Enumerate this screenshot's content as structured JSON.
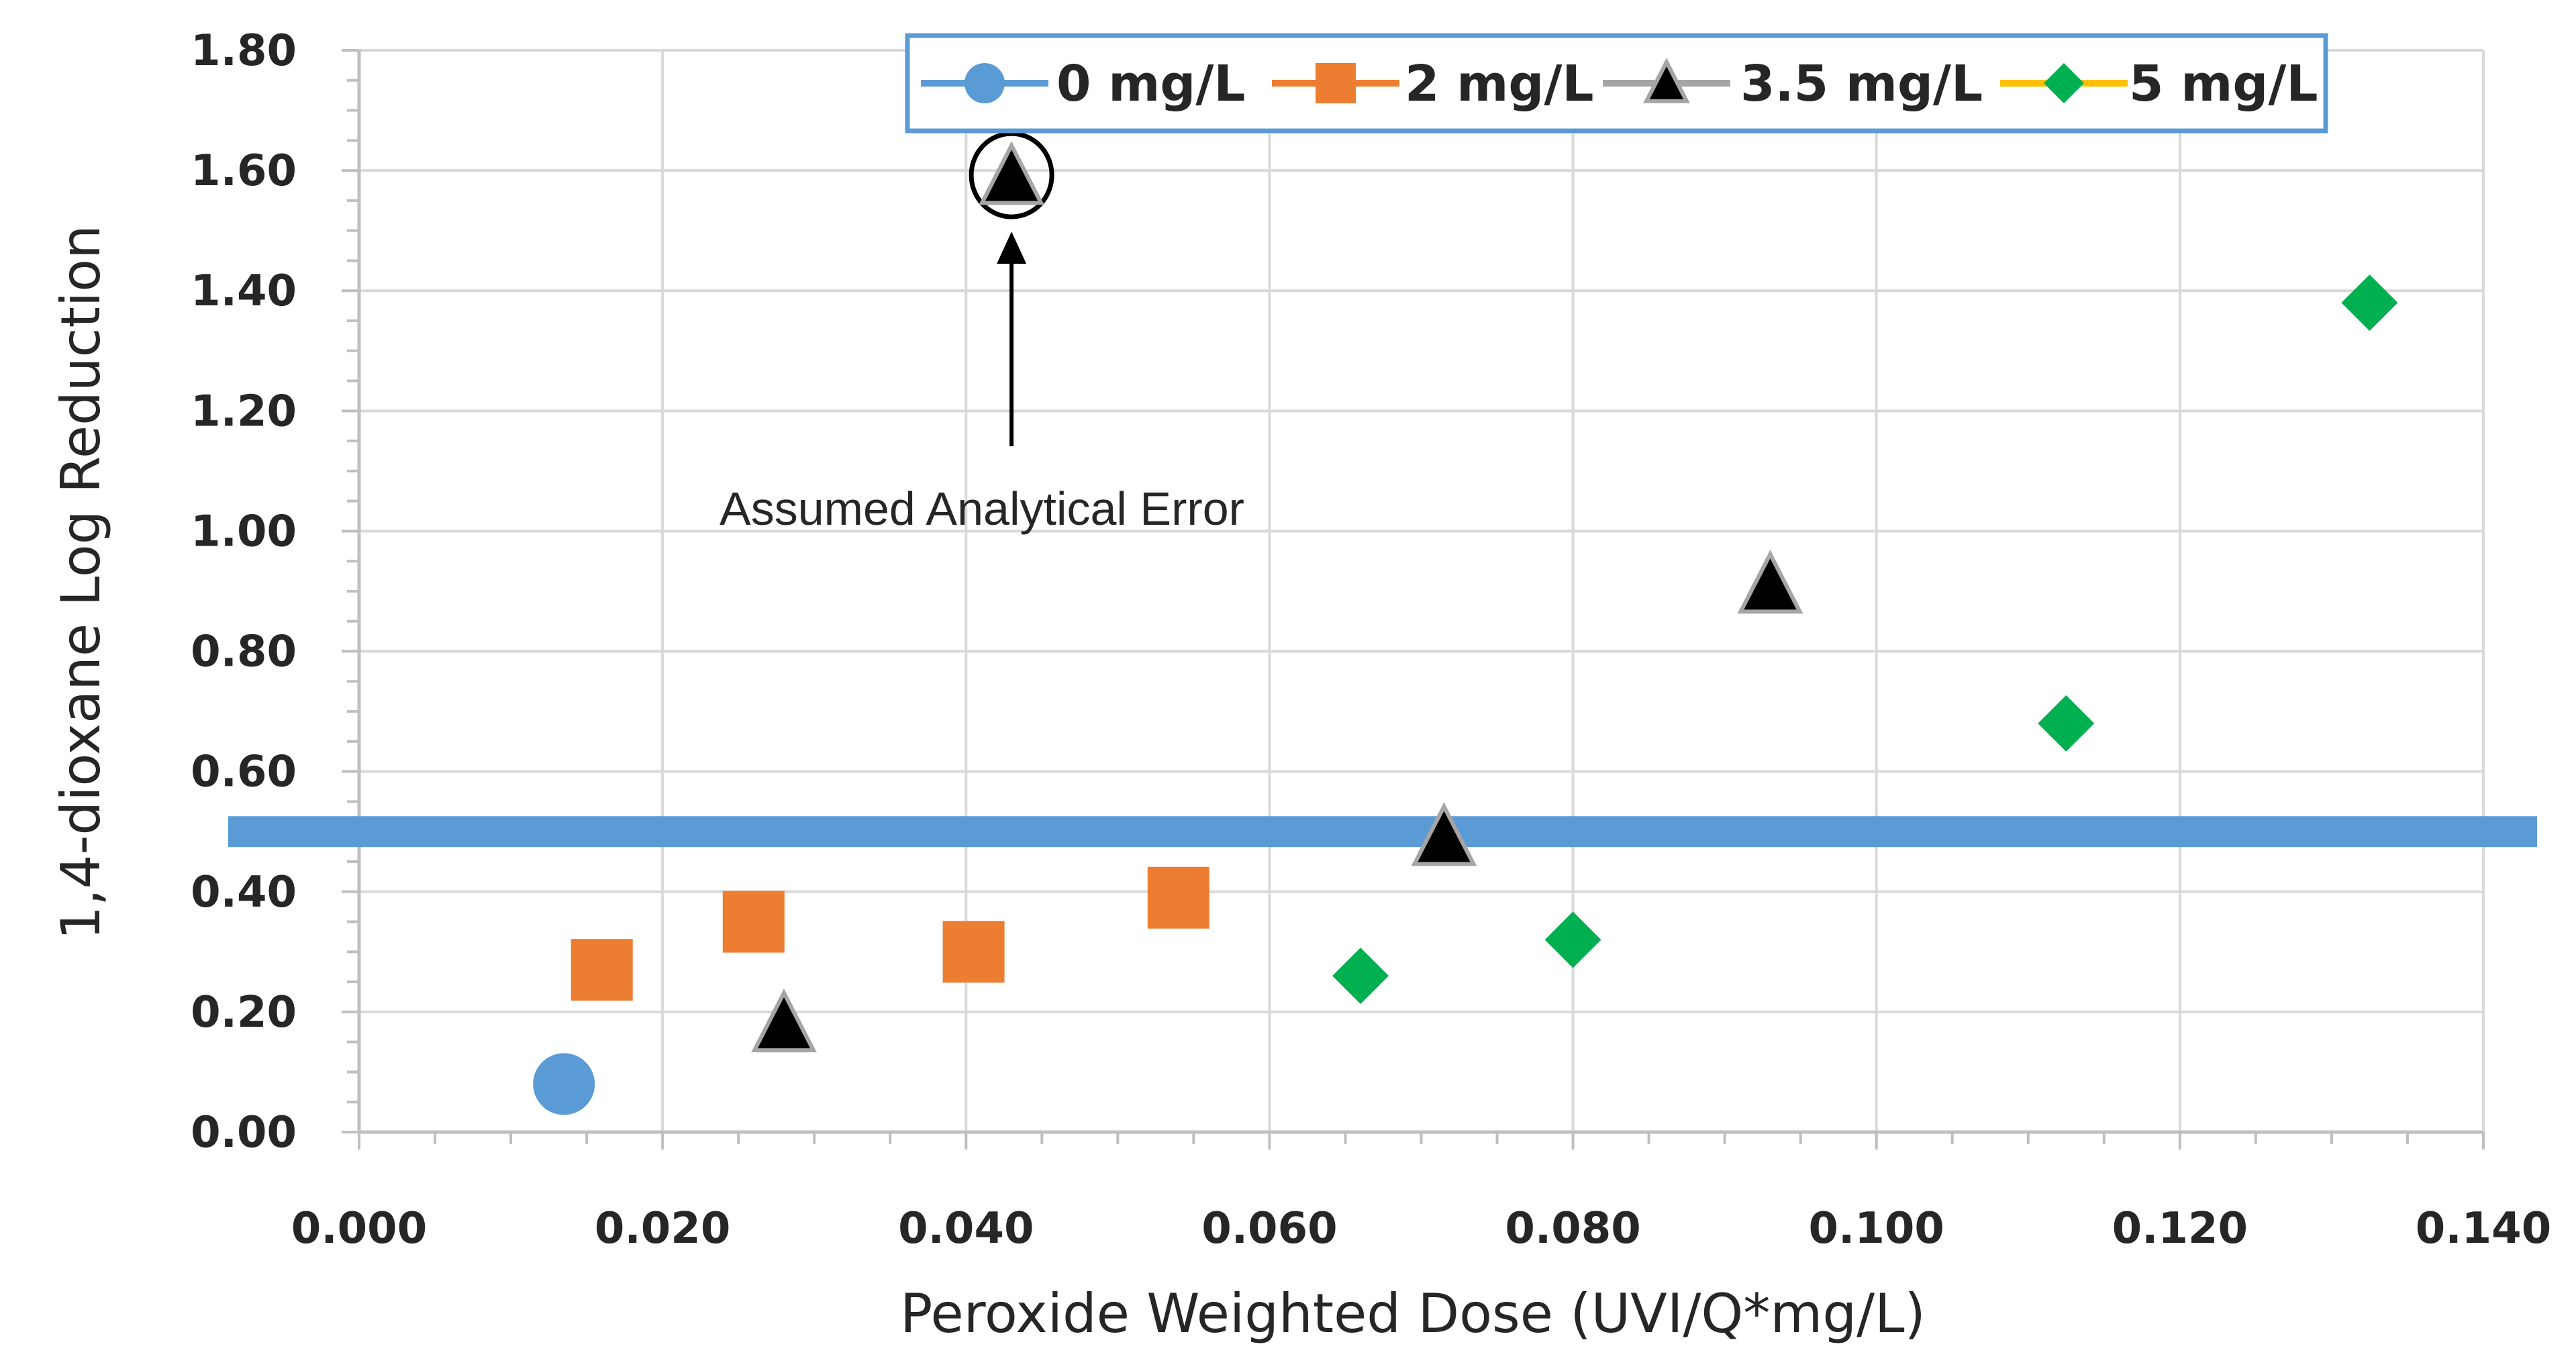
{
  "chart_data": {
    "type": "scatter",
    "xlabel": "Peroxide Weighted Dose (UVI/Q*mg/L)",
    "ylabel": "1,4-dioxane Log Reduction",
    "xlim": [
      0.0,
      0.14
    ],
    "ylim": [
      0.0,
      1.8
    ],
    "x_tick_labels": [
      "0.000",
      "0.020",
      "0.040",
      "0.060",
      "0.080",
      "0.100",
      "0.120",
      "0.140"
    ],
    "y_tick_labels": [
      "0.00",
      "0.20",
      "0.40",
      "0.60",
      "0.80",
      "1.00",
      "1.20",
      "1.40",
      "1.60",
      "1.80"
    ],
    "grid": true,
    "legend_position": "top",
    "reference_line": {
      "y": 0.5,
      "color": "#5b9bd5"
    },
    "series": [
      {
        "name": "0 mg/L",
        "marker": "circle",
        "color": "#5b9bd5",
        "points": [
          {
            "x": 0.0135,
            "y": 0.08
          }
        ]
      },
      {
        "name": "2 mg/L",
        "marker": "square",
        "color": "#ed7d31",
        "points": [
          {
            "x": 0.016,
            "y": 0.27
          },
          {
            "x": 0.026,
            "y": 0.35
          },
          {
            "x": 0.0405,
            "y": 0.3
          },
          {
            "x": 0.054,
            "y": 0.39
          }
        ]
      },
      {
        "name": "3.5 mg/L",
        "marker": "triangle",
        "color": "#000000",
        "line_color": "#a5a5a5",
        "points": [
          {
            "x": 0.028,
            "y": 0.18
          },
          {
            "x": 0.043,
            "y": 1.59
          },
          {
            "x": 0.0715,
            "y": 0.49
          },
          {
            "x": 0.093,
            "y": 0.91
          }
        ]
      },
      {
        "name": "5 mg/L",
        "marker": "diamond",
        "color": "#00b050",
        "line_color": "#ffc000",
        "points": [
          {
            "x": 0.066,
            "y": 0.26
          },
          {
            "x": 0.08,
            "y": 0.32
          },
          {
            "x": 0.1125,
            "y": 0.68
          },
          {
            "x": 0.1325,
            "y": 1.38
          }
        ]
      }
    ],
    "annotations": [
      {
        "text": "Assumed Analytical Error",
        "target_x": 0.043,
        "target_y": 1.59,
        "circled": true
      }
    ]
  }
}
